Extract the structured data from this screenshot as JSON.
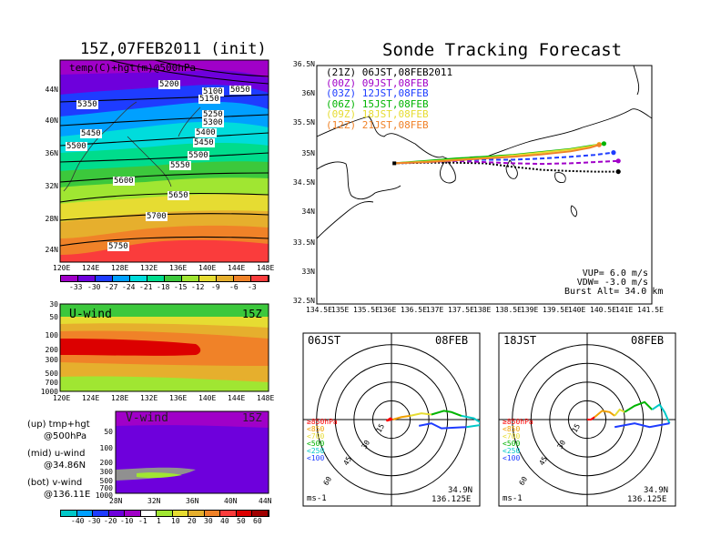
{
  "titles": {
    "init": "15Z,07FEB2011 (init)",
    "forecast": "Sonde Tracking Forecast"
  },
  "map_panel": {
    "label": "temp(C)+hgt(m)@500hPa",
    "lat_ticks": [
      "44N",
      "40N",
      "36N",
      "32N",
      "28N",
      "24N"
    ],
    "lon_ticks": [
      "120E",
      "124E",
      "128E",
      "132E",
      "136E",
      "140E",
      "144E",
      "148E"
    ],
    "height_contours": [
      "5050",
      "5100",
      "5150",
      "5200",
      "5250",
      "5300",
      "5350",
      "5400",
      "5450",
      "5450",
      "5500",
      "5500",
      "5550",
      "5600",
      "5650",
      "5700",
      "5750"
    ],
    "temp_colorbar_labels": [
      "-33",
      "-30",
      "-27",
      "-24",
      "-21",
      "-18",
      "-15",
      "-12",
      "-9",
      "-6",
      "-3"
    ],
    "temp_colors": [
      "#a000c8",
      "#6e00dc",
      "#1e3cff",
      "#00a0ff",
      "#00dcdc",
      "#00dc8c",
      "#3cc83c",
      "#a0e632",
      "#e6dc32",
      "#e6af2d",
      "#f08228",
      "#fa3c3c"
    ]
  },
  "uwind_panel": {
    "label": "U-wind",
    "time": "15Z",
    "p_ticks": [
      "30",
      "50",
      "100",
      "200",
      "300",
      "500",
      "700",
      "1000"
    ],
    "lon_ticks": [
      "120E",
      "124E",
      "128E",
      "132E",
      "136E",
      "140E",
      "144E",
      "148E"
    ]
  },
  "vwind_panel": {
    "label": "V-wind",
    "time": "15Z",
    "p_ticks": [
      "50",
      "100",
      "200",
      "300",
      "500",
      "700",
      "1000"
    ],
    "lat_ticks": [
      "28N",
      "32N",
      "36N",
      "40N",
      "44N"
    ]
  },
  "wind_colorbar": {
    "labels": [
      "-40",
      "-30",
      "-20",
      "-10",
      "-1",
      "1",
      "10",
      "20",
      "30",
      "40",
      "50",
      "60"
    ],
    "colors": [
      "#00c8c8",
      "#00a0ff",
      "#1e3cff",
      "#6e00dc",
      "#a000c8",
      "#ffffff",
      "#a0e632",
      "#e6dc32",
      "#e6af2d",
      "#f08228",
      "#fa3c3c",
      "#dc0000",
      "#a00000"
    ]
  },
  "notes": [
    {
      "title": "(up) tmp+hgt",
      "detail": "@500hPa"
    },
    {
      "title": "(mid) u-wind",
      "detail": "@34.86N"
    },
    {
      "title": "(bot) v-wind",
      "detail": "@136.11E"
    }
  ],
  "tracking": {
    "lat_ticks": [
      "36.5N",
      "36N",
      "35.5N",
      "35N",
      "34.5N",
      "34N",
      "33.5N",
      "33N",
      "32.5N"
    ],
    "lon_ticks": [
      "134.5E",
      "135E",
      "135.5E",
      "136E",
      "136.5E",
      "137E",
      "137.5E",
      "138E",
      "138.5E",
      "139E",
      "139.5E",
      "140E",
      "140.5E",
      "141E",
      "141.5E"
    ],
    "launches": [
      {
        "utc": "(21Z)",
        "jst": "06JST,08FEB2011",
        "color": "#000000"
      },
      {
        "utc": "(00Z)",
        "jst": "09JST,08FEB",
        "color": "#a000c8"
      },
      {
        "utc": "(03Z)",
        "jst": "12JST,08FEB",
        "color": "#1e3cff"
      },
      {
        "utc": "(06Z)",
        "jst": "15JST,08FEB",
        "color": "#00b400"
      },
      {
        "utc": "(09Z)",
        "jst": "18JST,08FEB",
        "color": "#e6dc32"
      },
      {
        "utc": "(12Z)",
        "jst": "21JST,08FEB",
        "color": "#f08228"
      }
    ],
    "params": [
      "VUP= 6.0 m/s",
      "VDW= -3.0 m/s",
      "Burst Alt= 34.0 km"
    ]
  },
  "hodographs": [
    {
      "time": "06JST",
      "date": "08FEB",
      "lat": "34.9N",
      "lon": "136.125E",
      "unit": "ms-1"
    },
    {
      "time": "18JST",
      "date": "08FEB",
      "lat": "34.9N",
      "lon": "136.125E",
      "unit": "ms-1"
    }
  ],
  "hodo_rings": [
    "15",
    "30",
    "45",
    "60"
  ],
  "hodo_levels": [
    {
      "label": "≥850hPa",
      "color": "#ff0000"
    },
    {
      "label": "<850",
      "color": "#f0a000"
    },
    {
      "label": "<700",
      "color": "#e6dc32"
    },
    {
      "label": "<500",
      "color": "#00b400"
    },
    {
      "label": "<250",
      "color": "#00c8c8"
    },
    {
      "label": "<100",
      "color": "#1e3cff"
    }
  ],
  "chart_data": [
    {
      "type": "line",
      "title": "Sonde Tracking Forecast",
      "xlim": [
        134.5,
        141.5
      ],
      "ylim": [
        32.5,
        36.5
      ],
      "launch_point": [
        136.12,
        34.86
      ],
      "series": [
        {
          "name": "(21Z) 06JST,08FEB2011",
          "style": "dotted",
          "x": [
            136.12,
            136.8,
            137.4,
            138.0,
            138.6,
            139.2,
            139.8,
            140.3,
            140.8
          ],
          "y": [
            34.86,
            34.87,
            34.87,
            34.86,
            34.8,
            34.75,
            34.73,
            34.72,
            34.72
          ]
        },
        {
          "name": "(00Z) 09JST,08FEB",
          "style": "dashed",
          "x": [
            136.12,
            136.8,
            137.4,
            138.0,
            138.6,
            139.2,
            139.8,
            140.3,
            140.8
          ],
          "y": [
            34.86,
            34.88,
            34.9,
            34.88,
            34.86,
            34.85,
            34.86,
            34.88,
            34.9
          ]
        },
        {
          "name": "(03Z) 12JST,08FEB",
          "style": "dashed",
          "x": [
            136.12,
            136.8,
            137.4,
            138.0,
            138.6,
            139.2,
            139.8,
            140.3,
            140.7
          ],
          "y": [
            34.86,
            34.88,
            34.91,
            34.92,
            34.92,
            34.94,
            34.97,
            35.0,
            35.04
          ]
        },
        {
          "name": "(06Z) 15JST,08FEB",
          "style": "solid",
          "x": [
            136.12,
            136.8,
            137.4,
            138.0,
            138.6,
            139.2,
            139.8,
            140.2,
            140.5
          ],
          "y": [
            34.86,
            34.9,
            34.94,
            34.97,
            35.0,
            35.05,
            35.1,
            35.15,
            35.19
          ]
        },
        {
          "name": "(09Z) 18JST,08FEB",
          "style": "solid",
          "x": [
            136.12,
            136.8,
            137.4,
            138.0,
            138.6,
            139.2,
            139.8,
            140.2,
            140.4
          ],
          "y": [
            34.86,
            34.89,
            34.92,
            34.95,
            34.99,
            35.04,
            35.09,
            35.14,
            35.18
          ]
        },
        {
          "name": "(12Z) 21JST,08FEB",
          "style": "solid",
          "x": [
            136.12,
            136.8,
            137.4,
            138.0,
            138.6,
            139.2,
            139.8,
            140.2,
            140.4
          ],
          "y": [
            34.86,
            34.88,
            34.91,
            34.94,
            34.97,
            35.01,
            35.06,
            35.12,
            35.17
          ]
        }
      ]
    },
    {
      "type": "line",
      "title": "hodograph 06JST 08FEB",
      "xlim": [
        -70,
        70
      ],
      "ylim": [
        -70,
        70
      ],
      "series": [
        {
          "name": "≥850hPa",
          "x": [
            0,
            -4,
            -1,
            1
          ],
          "y": [
            0,
            -1,
            1,
            0
          ]
        },
        {
          "name": "<850",
          "x": [
            1,
            8,
            15
          ],
          "y": [
            0,
            2,
            3
          ]
        },
        {
          "name": "<700",
          "x": [
            15,
            24,
            32
          ],
          "y": [
            3,
            5,
            4
          ]
        },
        {
          "name": "<500",
          "x": [
            32,
            42,
            48,
            56
          ],
          "y": [
            4,
            7,
            6,
            3
          ]
        },
        {
          "name": "<250",
          "x": [
            56,
            66,
            74,
            60
          ],
          "y": [
            3,
            1,
            -4,
            -6
          ]
        },
        {
          "name": "<100",
          "x": [
            60,
            40,
            32,
            22
          ],
          "y": [
            -6,
            -7,
            -3,
            -5
          ]
        }
      ]
    },
    {
      "type": "line",
      "title": "hodograph 18JST 08FEB",
      "xlim": [
        -70,
        70
      ],
      "ylim": [
        -70,
        70
      ],
      "series": [
        {
          "name": "≥850hPa",
          "x": [
            0,
            3,
            6
          ],
          "y": [
            0,
            0,
            2
          ]
        },
        {
          "name": "<850",
          "x": [
            6,
            12,
            18,
            22
          ],
          "y": [
            2,
            7,
            6,
            3
          ]
        },
        {
          "name": "<700",
          "x": [
            22,
            26,
            30
          ],
          "y": [
            3,
            8,
            6
          ]
        },
        {
          "name": "<500",
          "x": [
            30,
            38,
            46,
            52
          ],
          "y": [
            6,
            11,
            14,
            8
          ]
        },
        {
          "name": "<250",
          "x": [
            52,
            58,
            62,
            66
          ],
          "y": [
            8,
            12,
            6,
            -3
          ]
        },
        {
          "name": "<100",
          "x": [
            66,
            50,
            38,
            22
          ],
          "y": [
            -3,
            -6,
            -3,
            -6
          ]
        }
      ]
    }
  ]
}
